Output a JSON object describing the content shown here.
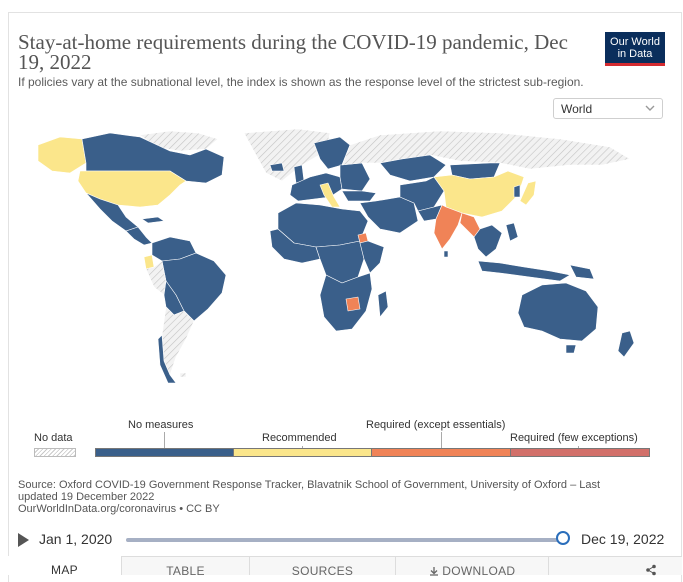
{
  "title": "Stay-at-home requirements during the COVID-19 pandemic, Dec 19, 2022",
  "subtitle": "If policies vary at the subnational level, the index is shown as the response level of the strictest sub-region.",
  "logo": {
    "line1": "Our World",
    "line2": "in Data"
  },
  "region_select": {
    "value": "World",
    "icon": "chevron-down-icon"
  },
  "legend": {
    "no_data": "No data",
    "categories": [
      {
        "label": "No measures",
        "color": "#3a5f8a"
      },
      {
        "label": "Recommended",
        "color": "#fbe68b"
      },
      {
        "label": "Required (except essentials)",
        "color": "#f08357"
      },
      {
        "label": "Required (few exceptions)",
        "color": "#d2706a"
      }
    ]
  },
  "map_colors": {
    "no_data": "#e8e8e8",
    "no_measures": "#3a5f8a",
    "recommended": "#fbe68b",
    "required_except_essentials": "#f08357",
    "required_few_exceptions": "#d2706a",
    "border": "#ffffff"
  },
  "source": {
    "line1": "Source: Oxford COVID-19 Government Response Tracker, Blavatnik School of Government, University of Oxford – Last",
    "line2": "updated 19 December 2022",
    "line3": "OurWorldInData.org/coronavirus • CC BY"
  },
  "timeline": {
    "start": "Jan 1, 2020",
    "end": "Dec 19, 2022",
    "position": 1.0,
    "play_icon": "play-icon"
  },
  "tabs": [
    {
      "label": "MAP",
      "active": true
    },
    {
      "label": "TABLE",
      "active": false
    },
    {
      "label": "SOURCES",
      "active": false
    },
    {
      "label": "DOWNLOAD",
      "active": false,
      "icon": "download-icon"
    },
    {
      "label": "",
      "active": false,
      "icon": "share-icon"
    }
  ]
}
